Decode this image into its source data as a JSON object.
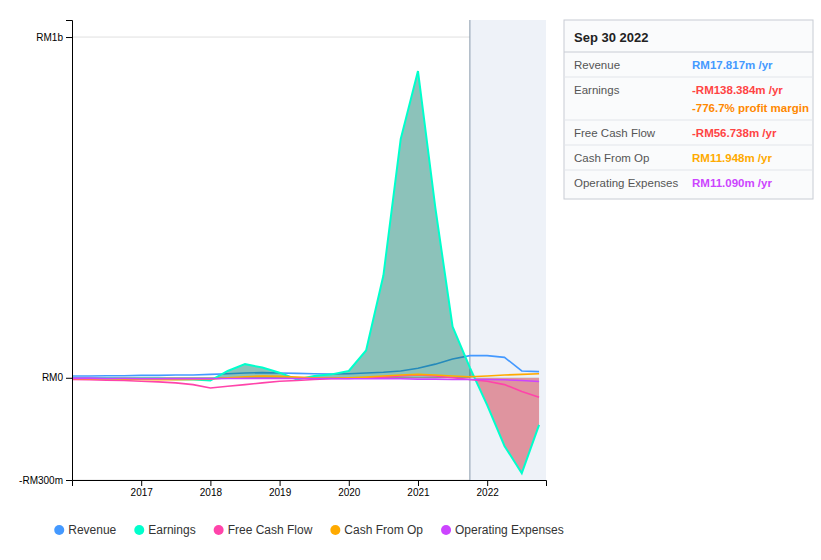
{
  "chart_data": {
    "type": "line",
    "title": "Sep 30 2022",
    "x": [
      2016.0,
      2016.25,
      2016.5,
      2016.75,
      2017.0,
      2017.25,
      2017.5,
      2017.75,
      2018.0,
      2018.25,
      2018.5,
      2018.75,
      2019.0,
      2019.25,
      2019.5,
      2019.75,
      2020.0,
      2020.25,
      2020.5,
      2020.75,
      2021.0,
      2021.25,
      2021.5,
      2021.75,
      2022.0,
      2022.25,
      2022.5,
      2022.75
    ],
    "series": [
      {
        "name": "Revenue",
        "color": "#4499ff",
        "values": [
          5,
          5,
          6,
          6,
          7,
          7,
          8,
          8,
          10,
          12,
          14,
          15,
          14,
          13,
          12,
          11,
          12,
          14,
          16,
          20,
          28,
          40,
          55,
          65,
          65,
          60,
          20,
          18
        ]
      },
      {
        "name": "Earnings",
        "color": "#00ffcc",
        "type": "area",
        "values": [
          0,
          -2,
          -2,
          -3,
          -3,
          -3,
          -4,
          -5,
          -8,
          20,
          40,
          30,
          15,
          -5,
          5,
          10,
          20,
          80,
          300,
          700,
          900,
          500,
          150,
          30,
          -80,
          -200,
          -280,
          -138
        ]
      },
      {
        "name": "Free Cash Flow",
        "color": "#ff44aa",
        "values": [
          -5,
          -6,
          -7,
          -8,
          -10,
          -12,
          -15,
          -20,
          -30,
          -25,
          -20,
          -15,
          -10,
          -8,
          -5,
          -3,
          -2,
          0,
          2,
          5,
          8,
          5,
          0,
          -5,
          -10,
          -20,
          -40,
          -57
        ]
      },
      {
        "name": "Cash From Op",
        "color": "#ffaa00",
        "values": [
          -2,
          -3,
          -3,
          -4,
          -5,
          -6,
          -6,
          -5,
          -4,
          0,
          3,
          5,
          4,
          2,
          0,
          -1,
          0,
          2,
          5,
          8,
          10,
          8,
          5,
          3,
          5,
          8,
          10,
          12
        ]
      },
      {
        "name": "Operating Expenses",
        "color": "#cc44ff",
        "values": [
          -1,
          -1,
          -2,
          -2,
          -3,
          -3,
          -3,
          -3,
          -3,
          -2,
          -2,
          -2,
          -2,
          -2,
          -2,
          -2,
          -3,
          -3,
          -3,
          -3,
          -4,
          -4,
          -5,
          -5,
          -5,
          -6,
          -8,
          -11
        ]
      }
    ],
    "xlim": [
      2016.0,
      2022.85
    ],
    "xticks": [
      2017,
      2018,
      2019,
      2020,
      2021,
      2022
    ],
    "ylim": [
      -300,
      1050
    ],
    "yticks": [
      {
        "value": 1000,
        "label": "RM1b"
      },
      {
        "value": 0,
        "label": "RM0"
      },
      {
        "value": -300,
        "label": "-RM300m"
      }
    ],
    "grid": true,
    "legend": "bottom",
    "highlight": [
      2021.75,
      2022.85
    ],
    "annotations": [
      {
        "label": "Revenue",
        "text": "RM17.817m /yr",
        "color": "#4499ff"
      },
      {
        "label": "Earnings",
        "text": "-RM138.384m /yr",
        "color": "#ff4444",
        "extra": "-776.7% profit margin",
        "extra_color": "#ff8800"
      },
      {
        "label": "Free Cash Flow",
        "text": "-RM56.738m /yr",
        "color": "#ff4444"
      },
      {
        "label": "Cash From Op",
        "text": "RM11.948m /yr",
        "color": "#ffaa00"
      },
      {
        "label": "Operating Expenses",
        "text": "RM11.090m /yr",
        "color": "#cc44ff"
      }
    ]
  }
}
